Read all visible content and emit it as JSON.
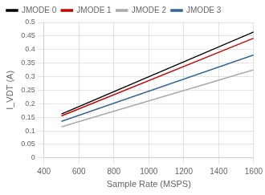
{
  "chart_data": {
    "type": "line",
    "xlabel": "Sample Rate (MSPS)",
    "ylabel": "I_VDT (A)",
    "x": [
      500,
      1600
    ],
    "series": [
      {
        "name": "JMODE 0",
        "color": "#000000",
        "values": [
          0.162,
          0.465
        ]
      },
      {
        "name": "JMODE 1",
        "color": "#cc0000",
        "values": [
          0.155,
          0.442
        ]
      },
      {
        "name": "JMODE 2",
        "color": "#aaaaaa",
        "values": [
          0.115,
          0.325
        ]
      },
      {
        "name": "JMODE 3",
        "color": "#336699",
        "values": [
          0.135,
          0.38
        ]
      }
    ],
    "xlim": [
      400,
      1600
    ],
    "ylim": [
      0,
      0.5
    ],
    "xticks": [
      400,
      600,
      800,
      1000,
      1200,
      1400,
      1600
    ],
    "yticks": [
      0,
      0.05,
      0.1,
      0.15,
      0.2,
      0.25,
      0.3,
      0.35,
      0.4,
      0.45,
      0.5
    ],
    "grid": true,
    "legend": "upper left"
  }
}
